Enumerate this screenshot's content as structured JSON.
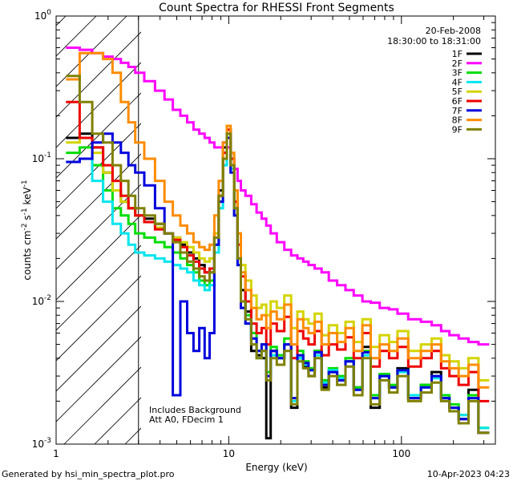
{
  "chart_data": {
    "type": "line",
    "title": "Count Spectra for RHESSI Front Segments",
    "xlabel": "Energy (keV)",
    "ylabel_parts": [
      "counts cm",
      "-2",
      " s",
      "-1",
      " keV",
      "-1"
    ],
    "x_scale": "log",
    "y_scale": "log",
    "xlim": [
      1,
      350
    ],
    "ylim": [
      0.001,
      1
    ],
    "x_tick_labels": [
      {
        "value": 1,
        "label": "1"
      },
      {
        "value": 10,
        "label": "10"
      },
      {
        "value": 100,
        "label": "100"
      }
    ],
    "y_tick_labels": [
      {
        "value": 1,
        "base": "10",
        "exp": "0"
      },
      {
        "value": 0.1,
        "base": "10",
        "exp": "-1"
      },
      {
        "value": 0.01,
        "base": "10",
        "exp": "-2"
      },
      {
        "value": 0.001,
        "base": "10",
        "exp": "-3"
      }
    ],
    "excluded_region": {
      "x_from": 1,
      "x_to": 3,
      "label": "hatched (below 3 keV)"
    },
    "info_lines": [
      "20-Feb-2008",
      "18:30:00 to 18:31:00"
    ],
    "annotations": [
      "Includes Background",
      "Att A0, FDecim 1"
    ],
    "legend_position": "top-right",
    "x": [
      1.25,
      1.5,
      1.75,
      2.0,
      2.25,
      2.5,
      2.75,
      3.0,
      3.5,
      4.0,
      4.5,
      5.0,
      5.5,
      6.0,
      6.5,
      7.0,
      7.5,
      8.0,
      8.5,
      9.0,
      9.5,
      10.0,
      10.5,
      11.0,
      11.5,
      12.0,
      13.0,
      14.0,
      15.0,
      16.0,
      17.0,
      18.0,
      20.0,
      22.0,
      24.0,
      26.0,
      28.0,
      30.0,
      33.0,
      36.0,
      40.0,
      45.0,
      50.0,
      56.0,
      63.0,
      70.0,
      80.0,
      90.0,
      100.0,
      120.0,
      140.0,
      160.0,
      180.0,
      200.0,
      230.0,
      260.0,
      300.0
    ],
    "series": [
      {
        "name": "1F",
        "color": "#000000",
        "values": [
          0.14,
          0.15,
          0.12,
          0.08,
          0.06,
          0.05,
          0.045,
          0.04,
          0.038,
          0.035,
          0.03,
          0.028,
          0.025,
          0.022,
          0.02,
          0.018,
          0.016,
          0.016,
          0.03,
          0.06,
          0.12,
          0.16,
          0.1,
          0.05,
          0.02,
          0.012,
          0.0085,
          0.0045,
          0.0042,
          0.004,
          0.0011,
          0.0045,
          0.004,
          0.005,
          0.0018,
          0.004,
          0.0035,
          0.003,
          0.0045,
          0.0025,
          0.0032,
          0.0028,
          0.0038,
          0.0025,
          0.0048,
          0.0018,
          0.003,
          0.0025,
          0.0034,
          0.0021,
          0.0026,
          0.0032,
          0.0021,
          0.0018,
          0.0015,
          0.0024,
          0.0012
        ]
      },
      {
        "name": "2F",
        "color": "#ff00ff",
        "values": [
          0.6,
          0.58,
          0.55,
          0.52,
          0.5,
          0.47,
          0.44,
          0.4,
          0.35,
          0.3,
          0.26,
          0.22,
          0.2,
          0.18,
          0.16,
          0.15,
          0.14,
          0.13,
          0.12,
          0.12,
          0.13,
          0.12,
          0.1,
          0.085,
          0.07,
          0.06,
          0.055,
          0.048,
          0.042,
          0.038,
          0.034,
          0.03,
          0.026,
          0.023,
          0.021,
          0.02,
          0.019,
          0.018,
          0.017,
          0.016,
          0.014,
          0.013,
          0.012,
          0.011,
          0.01,
          0.0098,
          0.009,
          0.0088,
          0.0082,
          0.0075,
          0.0072,
          0.0068,
          0.0062,
          0.0058,
          0.0055,
          0.0052,
          0.005
        ]
      },
      {
        "name": "3F",
        "color": "#00dd00",
        "values": [
          0.11,
          0.12,
          0.09,
          0.06,
          0.045,
          0.04,
          0.035,
          0.03,
          0.028,
          0.026,
          0.024,
          0.022,
          0.02,
          0.018,
          0.016,
          0.014,
          0.013,
          0.014,
          0.025,
          0.05,
          0.1,
          0.15,
          0.09,
          0.045,
          0.02,
          0.01,
          0.008,
          0.006,
          0.0045,
          0.005,
          0.0032,
          0.0048,
          0.0042,
          0.0055,
          0.0021,
          0.0045,
          0.0038,
          0.0034,
          0.0045,
          0.0028,
          0.0034,
          0.003,
          0.004,
          0.0025,
          0.0045,
          0.0022,
          0.0031,
          0.0026,
          0.0033,
          0.0022,
          0.0026,
          0.003,
          0.0022,
          0.0019,
          0.0016,
          0.0022,
          0.0013
        ]
      },
      {
        "name": "4F",
        "color": "#00e5ee",
        "values": [
          0.095,
          0.1,
          0.07,
          0.05,
          0.035,
          0.03,
          0.025,
          0.022,
          0.021,
          0.02,
          0.019,
          0.018,
          0.017,
          0.016,
          0.014,
          0.013,
          0.012,
          0.013,
          0.022,
          0.045,
          0.09,
          0.14,
          0.085,
          0.04,
          0.018,
          0.009,
          0.007,
          0.0055,
          0.004,
          0.0045,
          0.003,
          0.0042,
          0.004,
          0.005,
          0.002,
          0.004,
          0.0036,
          0.0033,
          0.0042,
          0.0027,
          0.0033,
          0.0029,
          0.0038,
          0.0024,
          0.0042,
          0.0021,
          0.003,
          0.0025,
          0.0032,
          0.0022,
          0.0025,
          0.0029,
          0.0021,
          0.0018,
          0.0016,
          0.0021,
          0.0013
        ]
      },
      {
        "name": "5F",
        "color": "#d4d400",
        "values": [
          0.13,
          0.14,
          0.11,
          0.08,
          0.06,
          0.05,
          0.045,
          0.04,
          0.036,
          0.033,
          0.03,
          0.028,
          0.026,
          0.024,
          0.022,
          0.02,
          0.019,
          0.02,
          0.03,
          0.055,
          0.11,
          0.16,
          0.11,
          0.06,
          0.03,
          0.018,
          0.014,
          0.011,
          0.009,
          0.0095,
          0.008,
          0.01,
          0.009,
          0.011,
          0.0065,
          0.0085,
          0.0075,
          0.007,
          0.0082,
          0.0058,
          0.0068,
          0.006,
          0.0072,
          0.0052,
          0.0075,
          0.0048,
          0.0058,
          0.0052,
          0.0062,
          0.0045,
          0.005,
          0.0055,
          0.0042,
          0.0038,
          0.0034,
          0.004,
          0.0028
        ]
      },
      {
        "name": "6F",
        "color": "#ee0000",
        "values": [
          0.25,
          0.14,
          0.12,
          0.09,
          0.07,
          0.055,
          0.045,
          0.04,
          0.036,
          0.032,
          0.03,
          0.027,
          0.024,
          0.021,
          0.019,
          0.017,
          0.016,
          0.017,
          0.028,
          0.055,
          0.11,
          0.16,
          0.1,
          0.05,
          0.025,
          0.015,
          0.01,
          0.007,
          0.006,
          0.0065,
          0.005,
          0.007,
          0.0062,
          0.0078,
          0.004,
          0.0062,
          0.0055,
          0.005,
          0.0062,
          0.0042,
          0.005,
          0.0046,
          0.0056,
          0.004,
          0.006,
          0.0035,
          0.0045,
          0.004,
          0.0048,
          0.0035,
          0.004,
          0.0045,
          0.0034,
          0.003,
          0.0026,
          0.0032,
          0.002
        ]
      },
      {
        "name": "7F",
        "color": "#0000dd",
        "values": [
          0.095,
          0.1,
          0.13,
          0.15,
          0.13,
          0.11,
          0.09,
          0.08,
          0.065,
          0.045,
          0.03,
          0.0022,
          0.01,
          0.006,
          0.0045,
          0.0065,
          0.004,
          0.006,
          0.025,
          0.05,
          0.1,
          0.14,
          0.08,
          0.04,
          0.018,
          0.009,
          0.007,
          0.0055,
          0.0045,
          0.005,
          0.003,
          0.0045,
          0.004,
          0.005,
          0.0021,
          0.0042,
          0.0037,
          0.0033,
          0.0044,
          0.0026,
          0.0032,
          0.0028,
          0.0038,
          0.0024,
          0.0044,
          0.0021,
          0.003,
          0.0025,
          0.0033,
          0.0021,
          0.0025,
          0.003,
          0.0021,
          0.0018,
          0.0015,
          0.0021,
          0.0012
        ]
      },
      {
        "name": "8F",
        "color": "#ff8c00",
        "values": [
          0.36,
          0.55,
          0.55,
          0.5,
          0.4,
          0.25,
          0.18,
          0.13,
          0.1,
          0.07,
          0.05,
          0.04,
          0.034,
          0.03,
          0.026,
          0.024,
          0.023,
          0.025,
          0.04,
          0.07,
          0.13,
          0.17,
          0.11,
          0.06,
          0.03,
          0.016,
          0.012,
          0.009,
          0.0075,
          0.008,
          0.0065,
          0.0085,
          0.0075,
          0.0095,
          0.005,
          0.0075,
          0.0065,
          0.006,
          0.0072,
          0.005,
          0.006,
          0.0052,
          0.0065,
          0.0045,
          0.0068,
          0.004,
          0.005,
          0.0045,
          0.0055,
          0.004,
          0.0045,
          0.005,
          0.0038,
          0.0034,
          0.003,
          0.0036,
          0.0025
        ]
      },
      {
        "name": "9F",
        "color": "#808000",
        "values": [
          0.38,
          0.25,
          0.15,
          0.13,
          0.09,
          0.07,
          0.055,
          0.045,
          0.04,
          0.035,
          0.03,
          0.026,
          0.022,
          0.019,
          0.017,
          0.015,
          0.014,
          0.016,
          0.028,
          0.055,
          0.1,
          0.15,
          0.09,
          0.045,
          0.02,
          0.01,
          0.0075,
          0.005,
          0.004,
          0.0045,
          0.0028,
          0.004,
          0.0036,
          0.0045,
          0.0019,
          0.0038,
          0.0034,
          0.003,
          0.004,
          0.0024,
          0.003,
          0.0026,
          0.0035,
          0.0022,
          0.004,
          0.0019,
          0.0028,
          0.0023,
          0.003,
          0.002,
          0.0023,
          0.0027,
          0.002,
          0.0017,
          0.0014,
          0.002,
          0.0012
        ]
      }
    ]
  },
  "footer": {
    "generated_by": "Generated by hsi_min_spectra_plot.pro",
    "timestamp": "10-Apr-2023 04:23"
  }
}
